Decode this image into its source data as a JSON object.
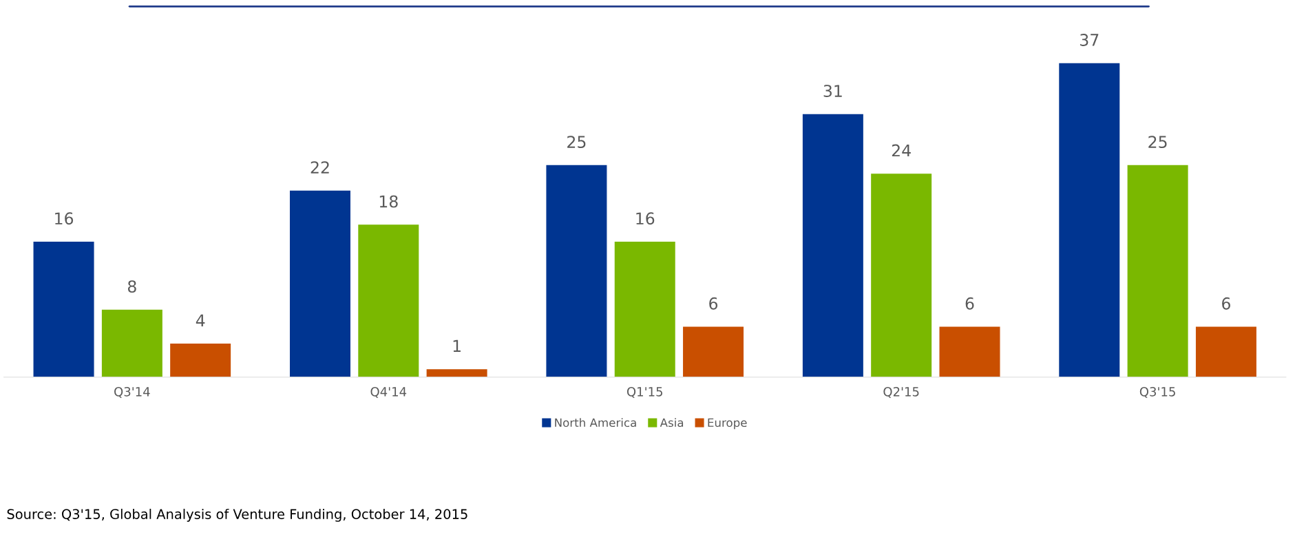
{
  "chart_data": {
    "type": "bar",
    "categories": [
      "Q3'14",
      "Q4'14",
      "Q1'15",
      "Q2'15",
      "Q3'15"
    ],
    "series": [
      {
        "name": "North America",
        "color": "#003591",
        "values": [
          16,
          22,
          25,
          31,
          37
        ]
      },
      {
        "name": "Asia",
        "color": "#7ab800",
        "values": [
          8,
          18,
          16,
          24,
          25
        ]
      },
      {
        "name": "Europe",
        "color": "#c94f00",
        "values": [
          4,
          1,
          6,
          6,
          6
        ]
      }
    ],
    "data_labels": true,
    "legend": "bottom",
    "grid": false,
    "tick_labels": "x",
    "annotations": [
      "Source: Q3'15, Global Analysis of Venture Funding, October 14, 2015"
    ]
  }
}
